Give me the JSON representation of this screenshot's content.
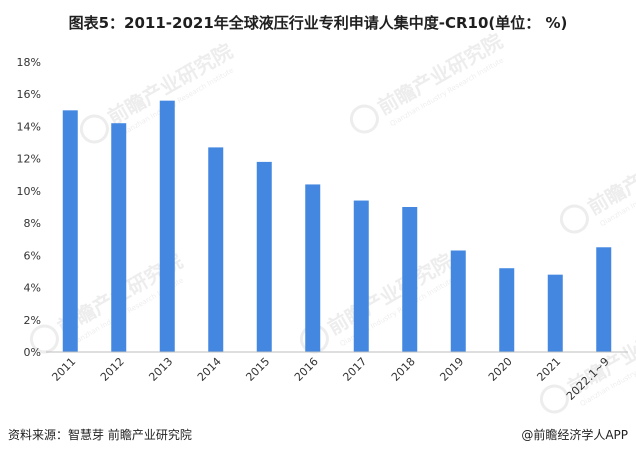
{
  "title": "图表5：2011-2021年全球液压行业专利申请人集中度-CR10(单位： %)",
  "footer": {
    "source": "资料来源：智慧芽 前瞻产业研究院",
    "credit": "@前瞻经济学人APP"
  },
  "watermark": {
    "brand": "前瞻产业研究院",
    "sub": "Qianzhan Industry Research Institute"
  },
  "colors": {
    "bar": "#4387E1",
    "axis": "#bdbdbd",
    "text": "#333333"
  },
  "chart_data": {
    "type": "bar",
    "categories": [
      "2011",
      "2012",
      "2013",
      "2014",
      "2015",
      "2016",
      "2017",
      "2018",
      "2019",
      "2020",
      "2021",
      "2022.1~9"
    ],
    "values": [
      15.0,
      14.2,
      15.6,
      12.7,
      11.8,
      10.4,
      9.4,
      9.0,
      6.3,
      5.2,
      4.8,
      6.5
    ],
    "ylim": [
      0,
      18
    ],
    "yticks": [
      "0%",
      "2%",
      "4%",
      "6%",
      "8%",
      "10%",
      "12%",
      "14%",
      "16%",
      "18%"
    ],
    "xlabel": "",
    "ylabel": "",
    "grid": false,
    "legend": "none"
  }
}
